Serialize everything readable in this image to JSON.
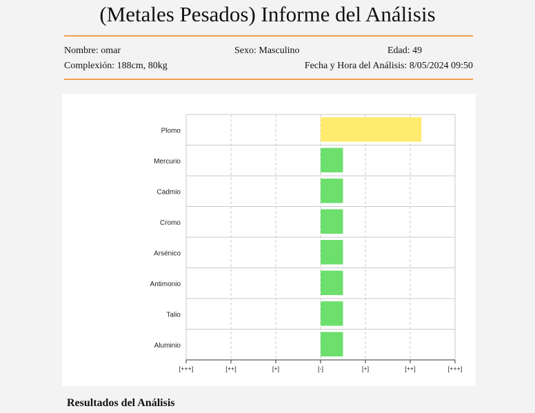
{
  "header": {
    "title": "(Metales Pesados) Informe del Análisis"
  },
  "patient": {
    "name_text": "Nombre: omar",
    "sex_text": "Sexo: Masculino",
    "age_text": "Edad: 49",
    "build_text": "Complexión: 188cm, 80kg",
    "datetime_text": "Fecha y Hora del Análisis: 8/05/2024 09:50"
  },
  "chart_data": {
    "type": "bar",
    "orientation": "horizontal",
    "x_ticks": [
      "[+++]",
      "[++]",
      "[+]",
      "[-]",
      "[+]",
      "[++]",
      "[+++]"
    ],
    "xlim": [
      -3,
      3
    ],
    "grid": true,
    "bars_start_at": 0,
    "categories": [
      "Plomo",
      "Mercurio",
      "Cadmio",
      "Cromo",
      "Arsénico",
      "Antimonio",
      "Talio",
      "Aluminio"
    ],
    "values": [
      2.25,
      0.5,
      0.5,
      0.5,
      0.5,
      0.5,
      0.5,
      0.5
    ],
    "colors": [
      "#ffec6e",
      "#6ddf6d",
      "#6ddf6d",
      "#6ddf6d",
      "#6ddf6d",
      "#6ddf6d",
      "#6ddf6d",
      "#6ddf6d"
    ]
  },
  "results": {
    "heading": "Resultados del Análisis"
  }
}
